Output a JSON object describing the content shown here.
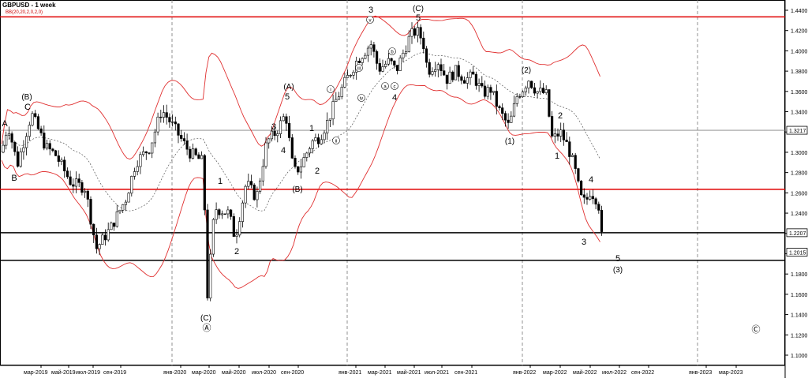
{
  "chart_data": {
    "type": "candlestick",
    "title": "GBPUSD - 1 week",
    "indicator": "BB(20,20,2,0,2,0)",
    "y_range": [
      1.08,
      1.45
    ],
    "y_ticks": [
      "1.4400",
      "1.4200",
      "1.4000",
      "1.3800",
      "1.3600",
      "1.3400",
      "1.3200",
      "1.3000",
      "1.2800",
      "1.2600",
      "1.2400",
      "1.2200",
      "1.2000",
      "1.1800",
      "1.1600",
      "1.1400",
      "1.1200",
      "1.1000"
    ],
    "x_labels": [
      "мар-2019",
      "май-2019",
      "июл-2019",
      "сен-2019",
      "янв-2020",
      "мар-2020",
      "май-2020",
      "июл-2020",
      "сен-2020",
      "янв-2021",
      "мар-2021",
      "май-2021",
      "июл-2021",
      "сен-2021",
      "янв-2022",
      "мар-2022",
      "май-2022",
      "июл-2022",
      "сен-2022",
      "янв-2023",
      "мар-2023"
    ],
    "price_badges": [
      "1.3217",
      "1.2207",
      "1.2015"
    ],
    "horizontal_lines": [
      {
        "price": 1.4335,
        "color": "#e00000"
      },
      {
        "price": 1.3217,
        "color": "#808080"
      },
      {
        "price": 1.2635,
        "color": "#e00000"
      },
      {
        "price": 1.2207,
        "color": "#000000"
      },
      {
        "price": 1.1935,
        "color": "#000000"
      }
    ],
    "wave_labels": [
      "A",
      "B",
      "(B)",
      "C",
      "1",
      "2",
      "(C)",
      "Ⓐ",
      "(A)",
      "5",
      "3",
      "4",
      "1",
      "2",
      "(B)",
      "i",
      "ii",
      "iii",
      "iv",
      "v",
      "3",
      "4",
      "a",
      "b",
      "c",
      "5",
      "(C)",
      "(1)",
      "(2)",
      "1",
      "2",
      "3",
      "4",
      "5",
      "(3)",
      "Ⓒ"
    ]
  }
}
